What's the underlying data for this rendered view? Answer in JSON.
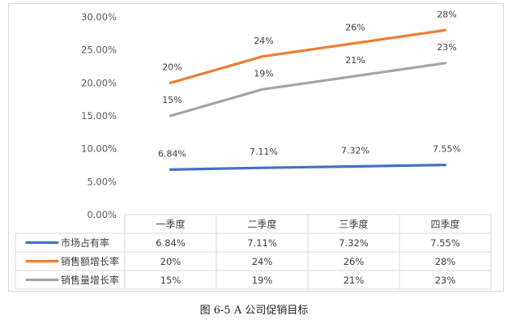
{
  "chart_data": {
    "type": "line",
    "categories": [
      "一季度",
      "二季度",
      "三季度",
      "四季度"
    ],
    "y_ticks": [
      "0.00%",
      "5.00%",
      "10.00%",
      "15.00%",
      "20.00%",
      "25.00%",
      "30.00%"
    ],
    "ylim": [
      0,
      30
    ],
    "grid": false,
    "legend": "table-below",
    "series": [
      {
        "name": "市场占有率",
        "color": "#4472C4",
        "values": [
          6.84,
          7.11,
          7.32,
          7.55
        ],
        "labels": [
          "6.84%",
          "7.11%",
          "7.32%",
          "7.55%"
        ]
      },
      {
        "name": "销售额增长率",
        "color": "#ED7D31",
        "values": [
          20,
          24,
          26,
          28
        ],
        "labels": [
          "20%",
          "24%",
          "26%",
          "28%"
        ]
      },
      {
        "name": "销售量增长率",
        "color": "#A5A5A5",
        "values": [
          15,
          19,
          21,
          23
        ],
        "labels": [
          "15%",
          "19%",
          "21%",
          "23%"
        ]
      }
    ]
  },
  "caption": "图 6-5 A 公司促销目标"
}
